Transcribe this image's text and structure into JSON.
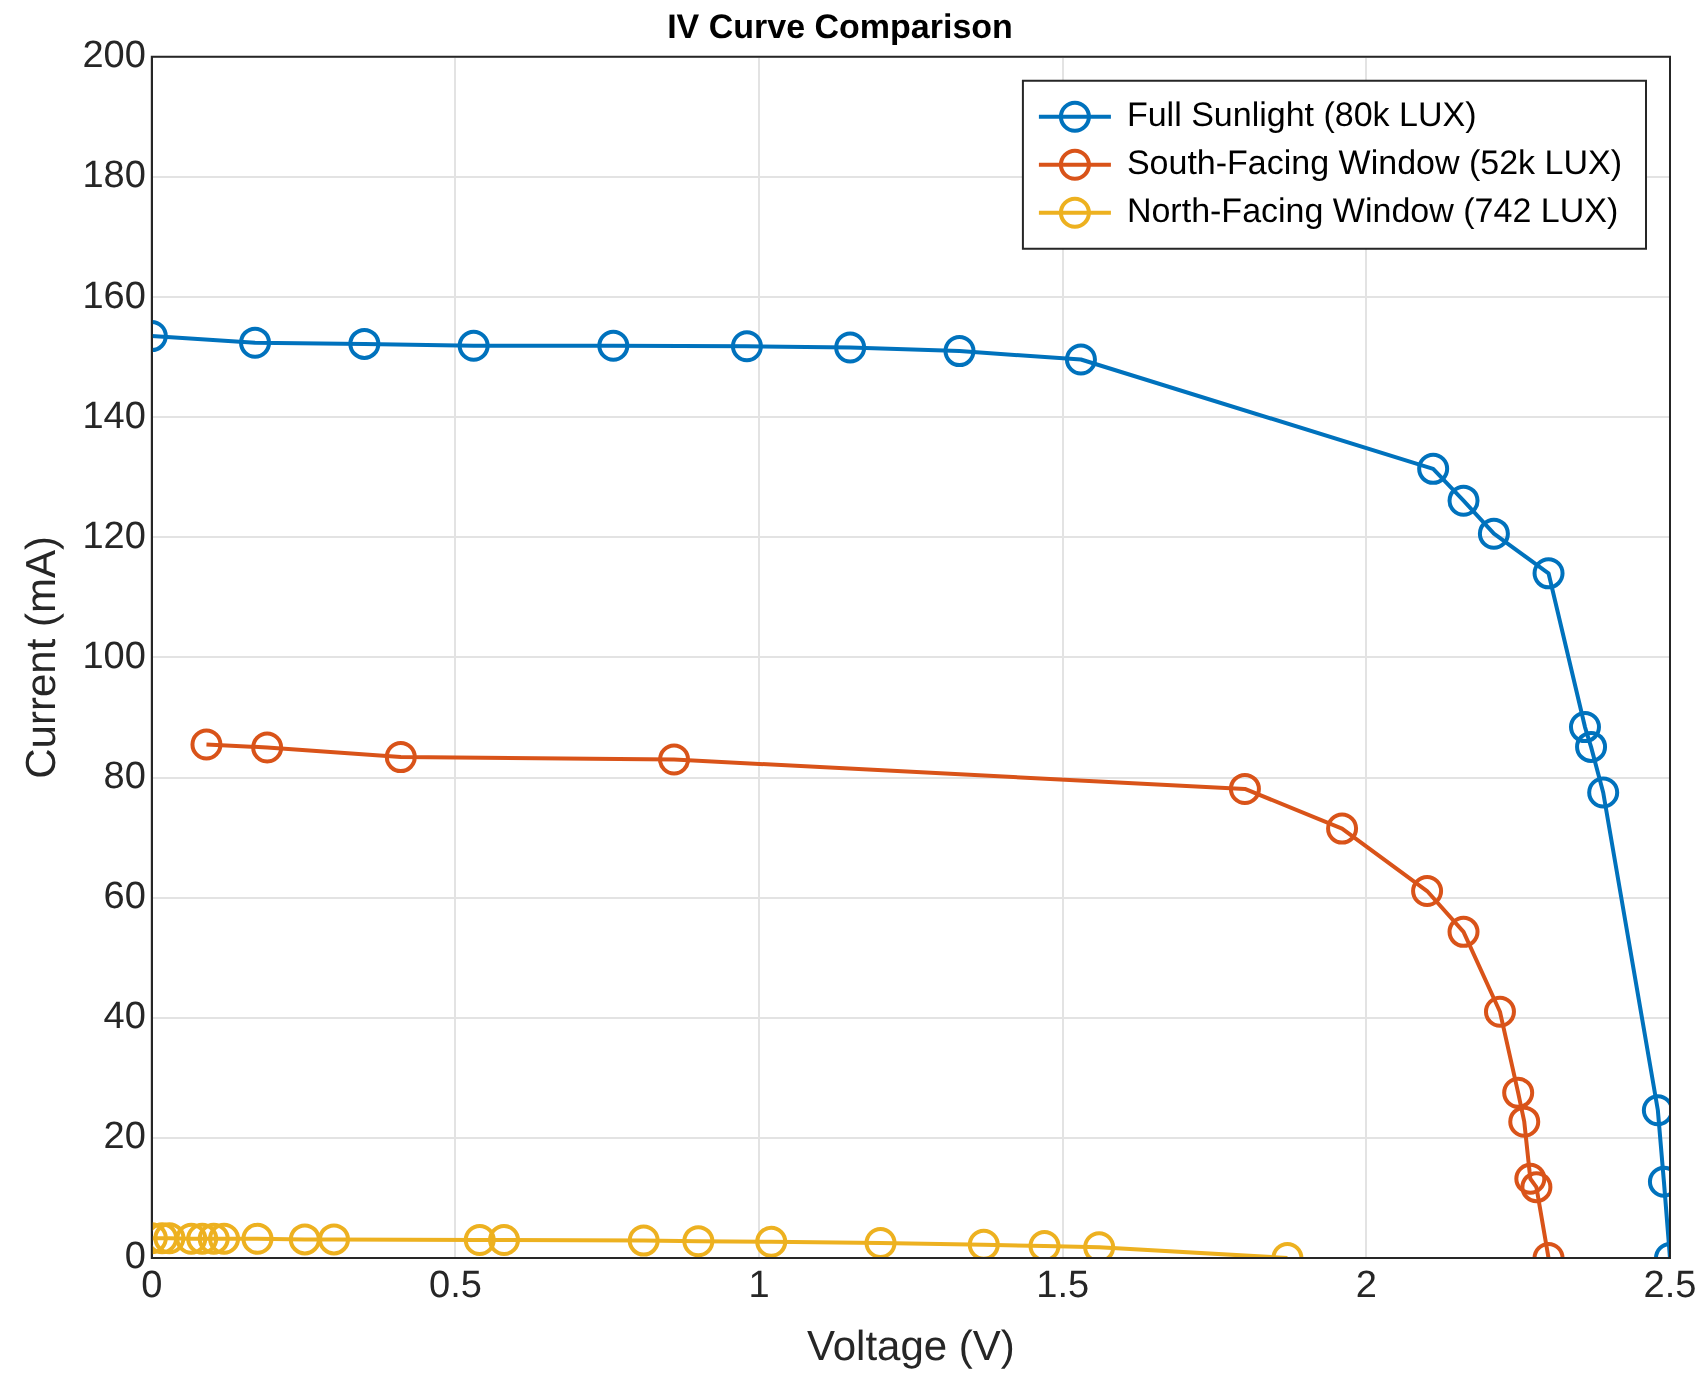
{
  "chart_data": {
    "type": "line",
    "title": "IV Curve Comparison",
    "xlabel": "Voltage (V)",
    "ylabel": "Current (mA)",
    "xlim": [
      0,
      2.5
    ],
    "xticks": [
      0,
      0.5,
      1,
      1.5,
      2,
      2.5
    ],
    "ylim": [
      0,
      200
    ],
    "yticks": [
      0,
      20,
      40,
      60,
      80,
      100,
      120,
      140,
      160,
      180,
      200
    ],
    "grid": true,
    "legend": "top right",
    "marker": "circle",
    "line_style": "solid",
    "series": [
      {
        "name": "Full Sunlight (80k LUX)",
        "color": "#0072bd",
        "x": [
          0,
          0.17,
          0.35,
          0.53,
          0.76,
          0.98,
          1.15,
          1.33,
          1.53,
          2.11,
          2.16,
          2.21,
          2.3,
          2.36,
          2.37,
          2.39,
          2.48,
          2.49,
          2.5
        ],
        "values": [
          153.5,
          152.4,
          152.2,
          151.9,
          151.9,
          151.8,
          151.6,
          151.0,
          149.6,
          131.4,
          126.1,
          120.6,
          114.0,
          88.4,
          85.1,
          77.5,
          24.6,
          12.7,
          0
        ]
      },
      {
        "name": "South-Facing Window (52k LUX)",
        "color": "#d95319",
        "x": [
          0.09,
          0.19,
          0.41,
          0.86,
          1.8,
          1.96,
          2.1,
          2.16,
          2.22,
          2.25,
          2.26,
          2.27,
          2.28,
          2.3
        ],
        "values": [
          85.5,
          85.0,
          83.4,
          83.0,
          78.1,
          71.5,
          61.1,
          54.3,
          41.0,
          27.5,
          22.7,
          13.2,
          11.8,
          0
        ]
      },
      {
        "name": "North-Facing Window (742 LUX)",
        "color": "#edb120",
        "x": [
          0,
          0.017,
          0.029,
          0.065,
          0.083,
          0.102,
          0.119,
          0.174,
          0.252,
          0.3,
          0.54,
          0.58,
          0.81,
          0.9,
          1.02,
          1.2,
          1.37,
          1.47,
          1.56,
          1.87
        ],
        "values": [
          3.3,
          3.3,
          3.3,
          3.2,
          3.2,
          3.2,
          3.2,
          3.2,
          3.1,
          3.1,
          3.0,
          3.0,
          2.9,
          2.8,
          2.7,
          2.5,
          2.2,
          2.0,
          1.8,
          0
        ]
      }
    ]
  }
}
